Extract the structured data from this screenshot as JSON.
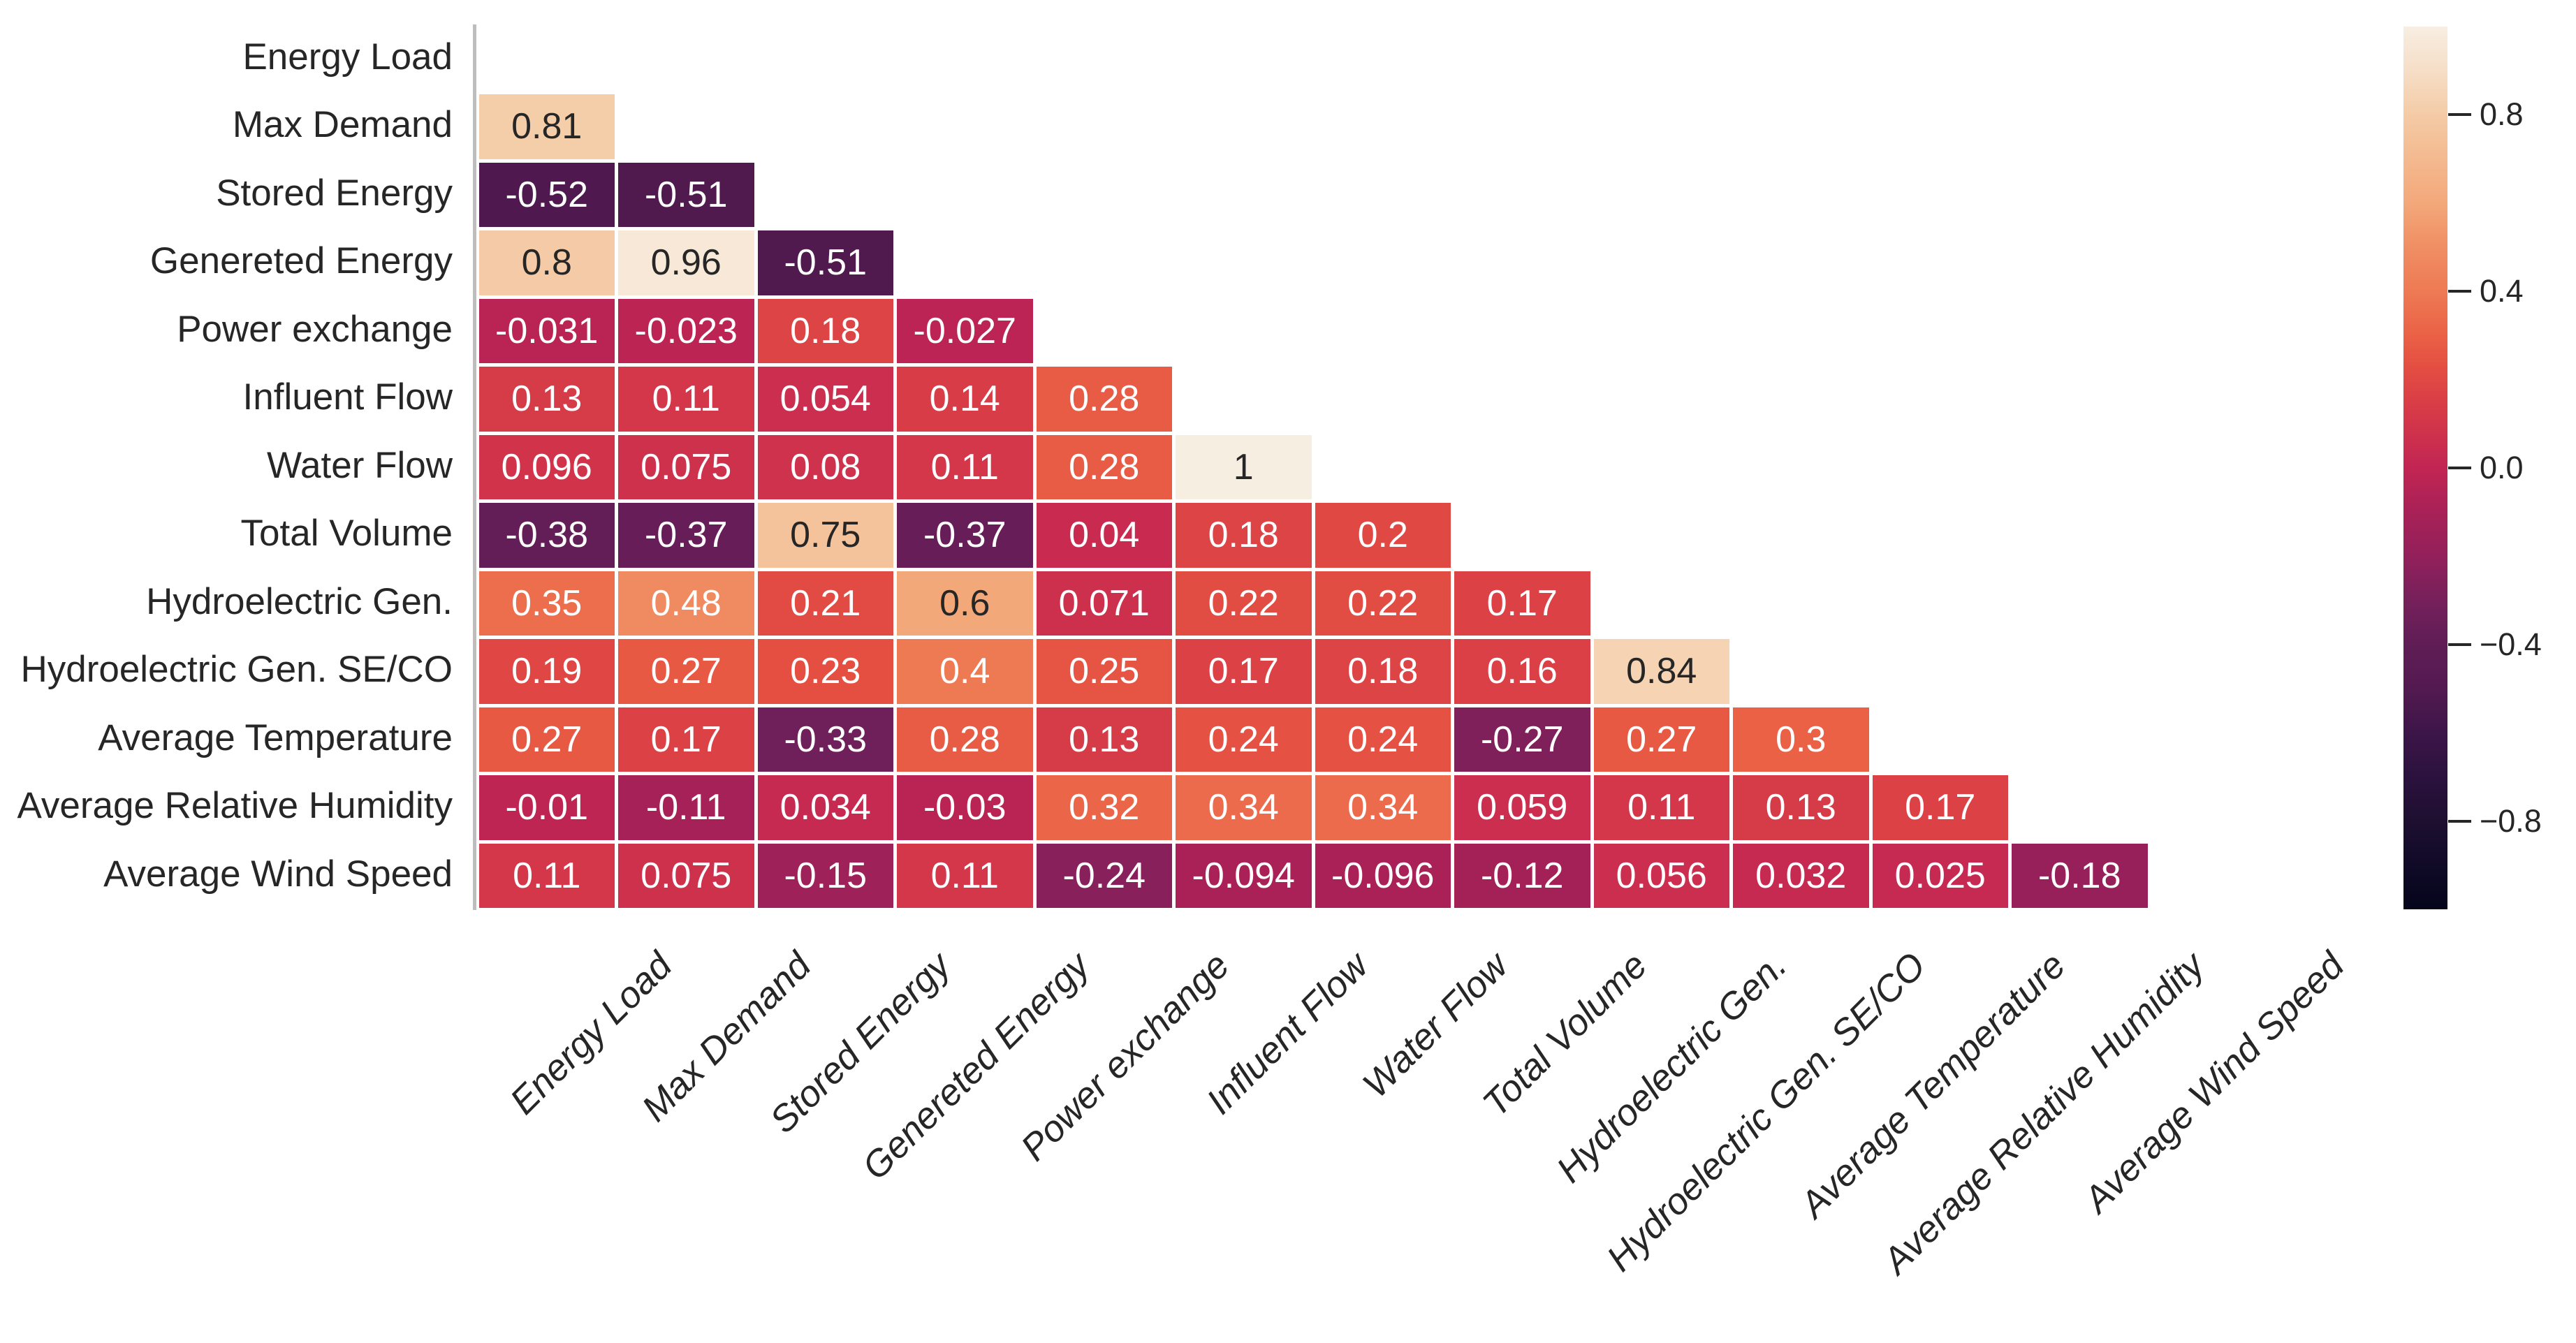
{
  "styles": {
    "background": "#ffffff",
    "text_color": "#262626",
    "grid_line_color": "#ffffff",
    "spine_color": "#bdbdbd",
    "annot_dark_color": "#262626",
    "annot_light_color": "#ffffff"
  },
  "chart_data": {
    "type": "heatmap",
    "subtype": "correlation-matrix-lower-triangle",
    "title": "",
    "xlabel": "",
    "ylabel": "",
    "grid": false,
    "legend_position": "colorbar-right",
    "categories": [
      "Energy Load",
      "Max Demand",
      "Stored Energy",
      "Genereted Energy",
      "Power exchange",
      "Influent Flow",
      "Water Flow",
      "Total Volume",
      "Hydroelectric Gen.",
      "Hydroelectric Gen. SE/CO",
      "Average Temperature",
      "Average Relative Humidity",
      "Average Wind Speed"
    ],
    "values_lower_triangle": [
      [],
      [
        "0.81"
      ],
      [
        "-0.52",
        "-0.51"
      ],
      [
        "0.8",
        "0.96",
        "-0.51"
      ],
      [
        "-0.031",
        "-0.023",
        "0.18",
        "-0.027"
      ],
      [
        "0.13",
        "0.11",
        "0.054",
        "0.14",
        "0.28"
      ],
      [
        "0.096",
        "0.075",
        "0.08",
        "0.11",
        "0.28",
        "1"
      ],
      [
        "-0.38",
        "-0.37",
        "0.75",
        "-0.37",
        "0.04",
        "0.18",
        "0.2"
      ],
      [
        "0.35",
        "0.48",
        "0.21",
        "0.6",
        "0.071",
        "0.22",
        "0.22",
        "0.17"
      ],
      [
        "0.19",
        "0.27",
        "0.23",
        "0.4",
        "0.25",
        "0.17",
        "0.18",
        "0.16",
        "0.84"
      ],
      [
        "0.27",
        "0.17",
        "-0.33",
        "0.28",
        "0.13",
        "0.24",
        "0.24",
        "-0.27",
        "0.27",
        "0.3"
      ],
      [
        "-0.01",
        "-0.11",
        "0.034",
        "-0.03",
        "0.32",
        "0.34",
        "0.34",
        "0.059",
        "0.11",
        "0.13",
        "0.17"
      ],
      [
        "0.11",
        "0.075",
        "-0.15",
        "0.11",
        "-0.24",
        "-0.094",
        "-0.096",
        "-0.12",
        "0.056",
        "0.032",
        "0.025",
        "-0.18"
      ]
    ],
    "colorbar": {
      "range": [
        -1,
        1
      ],
      "ticks": [
        {
          "value": 0.8,
          "label": "0.8"
        },
        {
          "value": 0.4,
          "label": "0.4"
        },
        {
          "value": 0.0,
          "label": "0.0"
        },
        {
          "value": -0.4,
          "label": "−0.4"
        },
        {
          "value": -0.8,
          "label": "−0.8"
        }
      ]
    },
    "colormap": {
      "name": "rocket",
      "anchors": [
        [
          0.0,
          "#04051B"
        ],
        [
          0.05,
          "#100A27"
        ],
        [
          0.1,
          "#1E0F31"
        ],
        [
          0.15,
          "#2B123E"
        ],
        [
          0.2,
          "#3D1549"
        ],
        [
          0.25,
          "#531A50"
        ],
        [
          0.3,
          "#601D56"
        ],
        [
          0.35,
          "#76205B"
        ],
        [
          0.4,
          "#93205B"
        ],
        [
          0.45,
          "#A82157"
        ],
        [
          0.5,
          "#C22553"
        ],
        [
          0.55,
          "#D2354A"
        ],
        [
          0.585,
          "#DC4245"
        ],
        [
          0.62,
          "#E55142"
        ],
        [
          0.65,
          "#EA6146"
        ],
        [
          0.7,
          "#EE7A54"
        ],
        [
          0.75,
          "#F08E63"
        ],
        [
          0.8,
          "#F3A87A"
        ],
        [
          0.85,
          "#F4B98F"
        ],
        [
          0.9,
          "#F4CBA6"
        ],
        [
          0.95,
          "#F6DEC7"
        ],
        [
          1.0,
          "#F7EEE2"
        ]
      ]
    }
  }
}
